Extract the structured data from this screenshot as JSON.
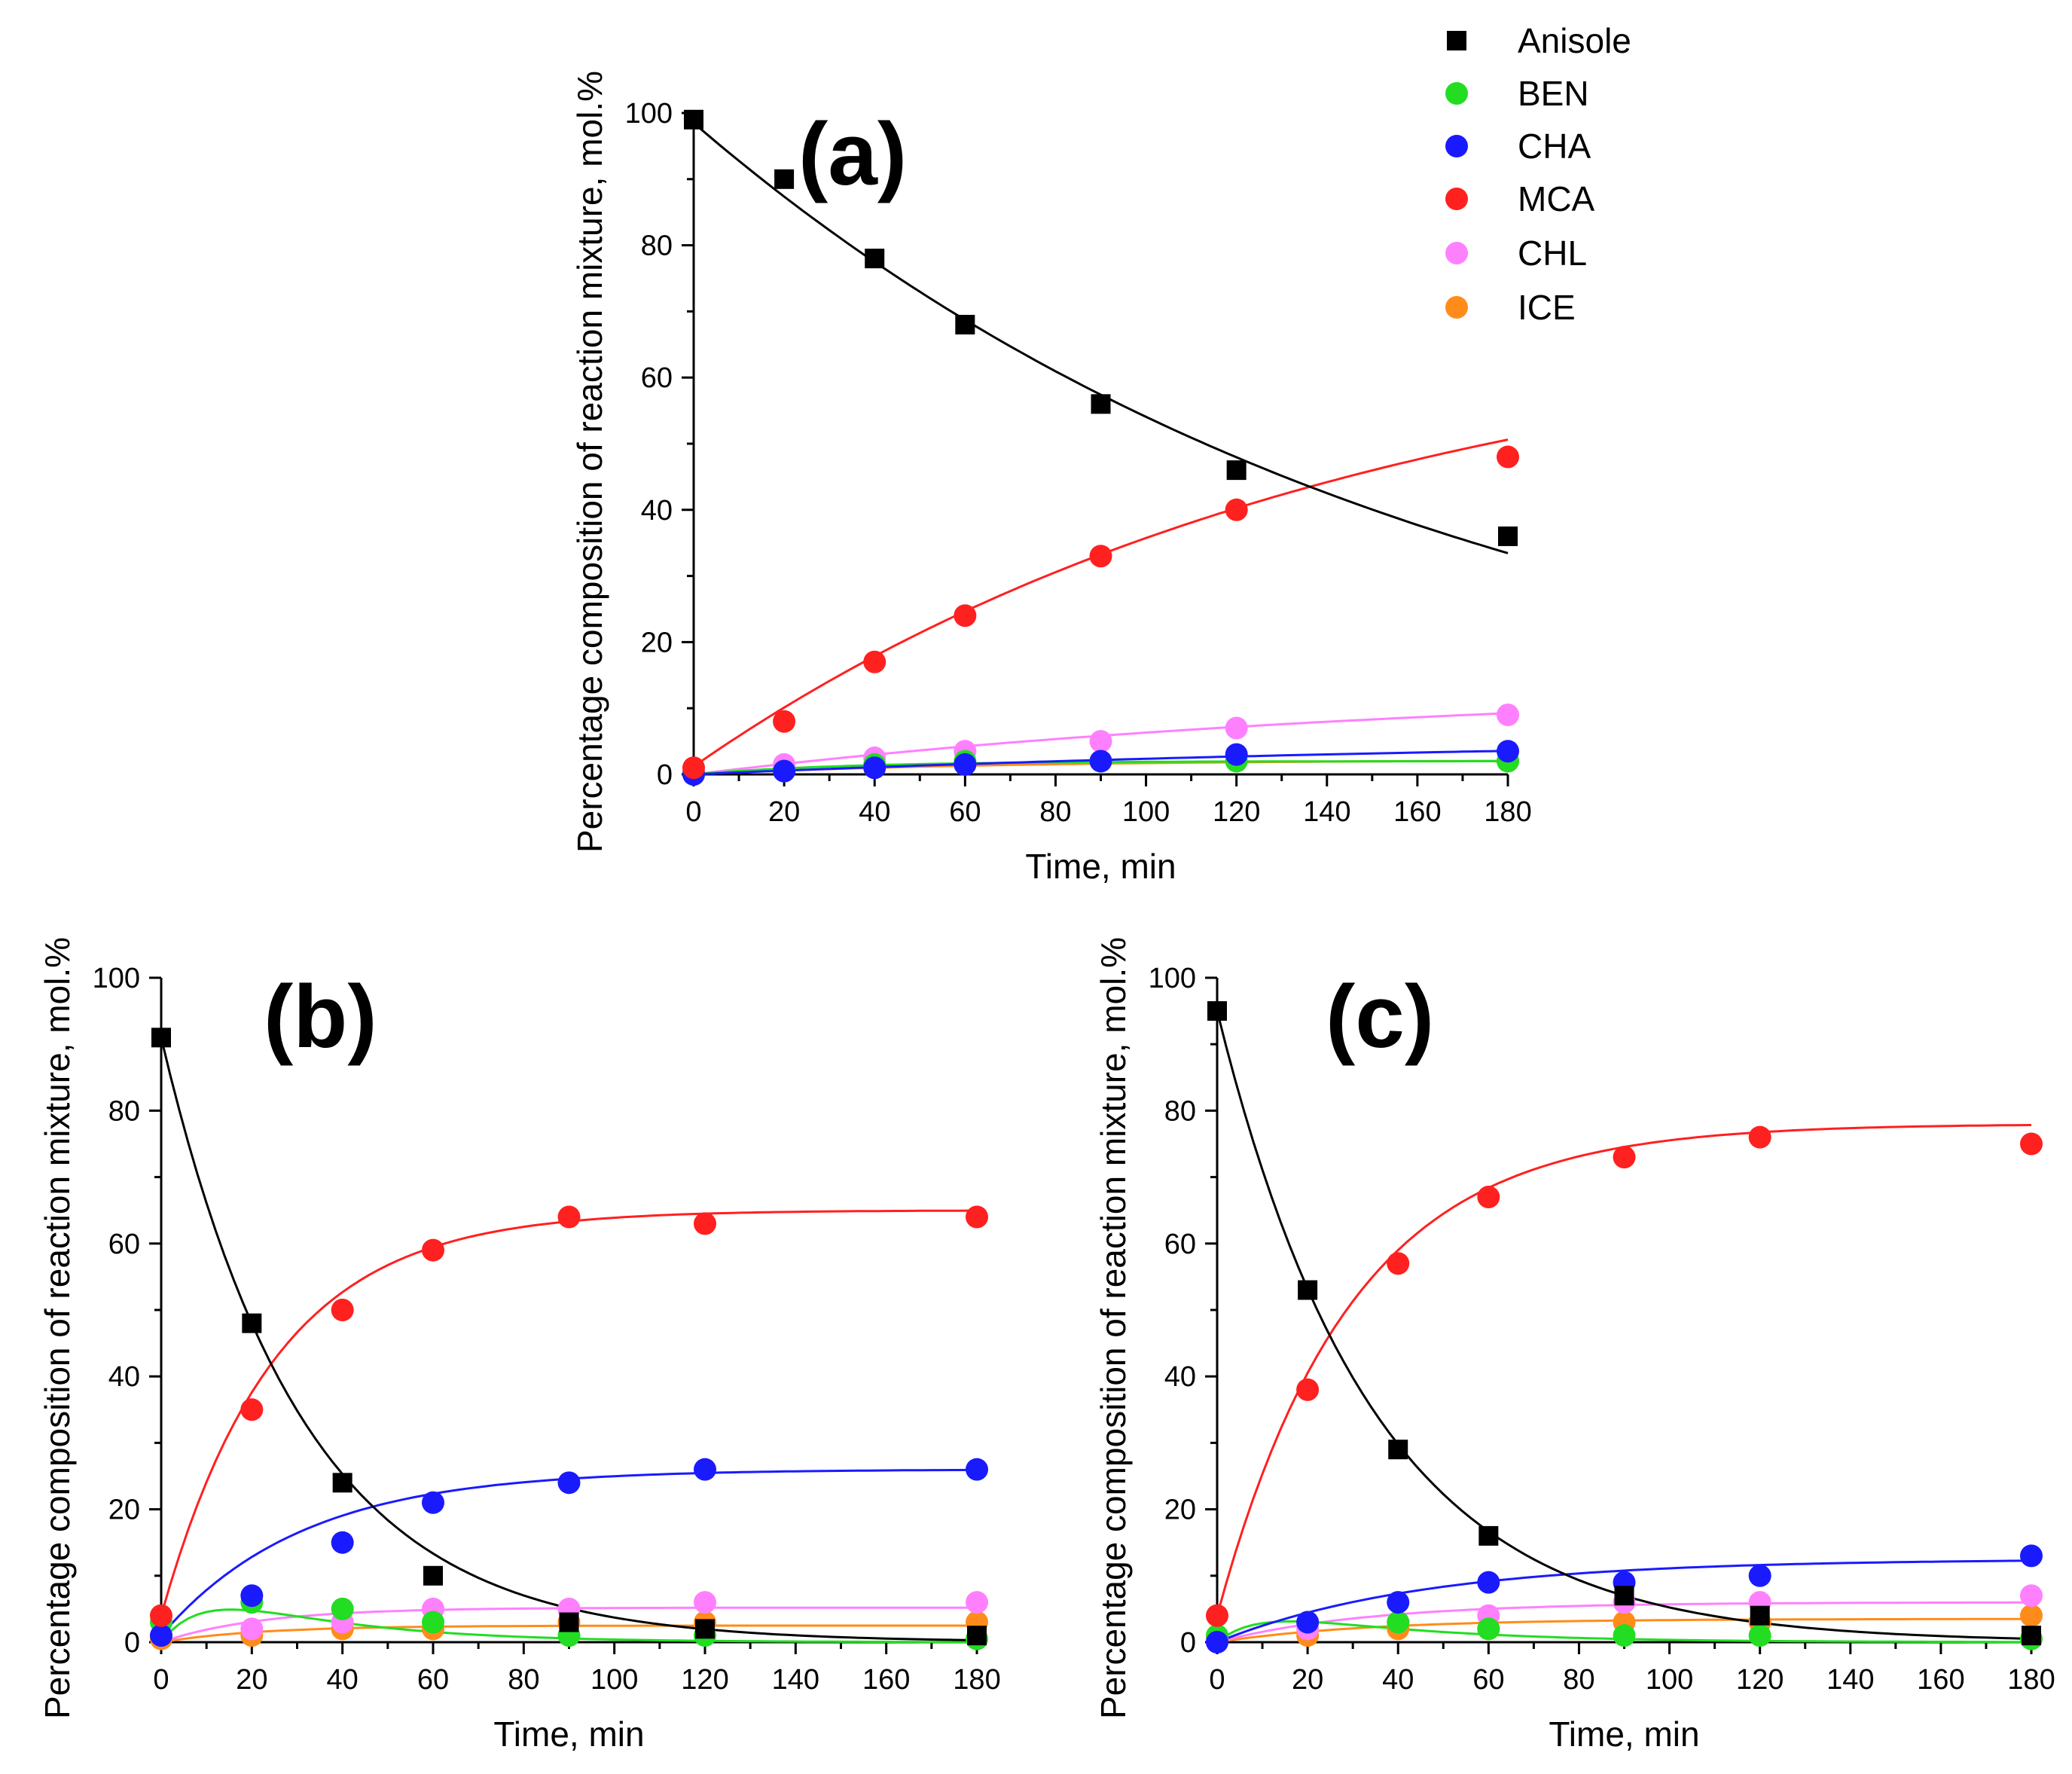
{
  "legend": [
    {
      "name": "Anisole",
      "color": "#000000",
      "marker": "square"
    },
    {
      "name": "BEN",
      "color": "#22dd22",
      "marker": "circle"
    },
    {
      "name": "CHA",
      "color": "#1a1aff",
      "marker": "circle"
    },
    {
      "name": "MCA",
      "color": "#ff2020",
      "marker": "circle"
    },
    {
      "name": "CHL",
      "color": "#ff80ff",
      "marker": "circle"
    },
    {
      "name": "ICE",
      "color": "#ff8c1a",
      "marker": "circle"
    }
  ],
  "chart_data": [
    {
      "type": "scatter",
      "panel": "(a)",
      "xlabel": "Time, min",
      "ylabel": "Percentage composition of reaction mixture, mol.%",
      "xlim": [
        0,
        180
      ],
      "ylim": [
        0,
        100
      ],
      "xticks": [
        0,
        20,
        40,
        60,
        80,
        100,
        120,
        140,
        160,
        180
      ],
      "yticks": [
        0,
        20,
        40,
        60,
        80,
        100
      ],
      "x": [
        0,
        20,
        40,
        60,
        90,
        120,
        180
      ],
      "series": [
        {
          "name": "Anisole",
          "values": [
            99,
            90,
            78,
            68,
            56,
            46,
            36
          ],
          "fit": {
            "model": "decay",
            "a": 98.5,
            "c": 0,
            "k": 0.006
          }
        },
        {
          "name": "BEN",
          "values": [
            0,
            0.5,
            1.5,
            2,
            2,
            2,
            2
          ],
          "fit": {
            "model": "rise",
            "a": 2,
            "c": 0,
            "k": 0.03
          }
        },
        {
          "name": "CHA",
          "values": [
            0,
            0.5,
            1,
            1.5,
            2,
            3,
            3.5
          ],
          "fit": {
            "model": "rise",
            "a": 6,
            "c": 0,
            "k": 0.005
          }
        },
        {
          "name": "MCA",
          "values": [
            1,
            8,
            17,
            24,
            33,
            40,
            48
          ],
          "fit": {
            "model": "rise",
            "a": 70,
            "c": 1.2,
            "k": 0.0068
          }
        },
        {
          "name": "CHL",
          "values": [
            0.5,
            1.5,
            2.5,
            3.5,
            5,
            7,
            9
          ],
          "fit": {
            "model": "rise",
            "a": 14,
            "c": 0,
            "k": 0.006
          }
        },
        {
          "name": "ICE",
          "values": [
            0.5,
            0.5,
            1,
            1.5,
            2,
            2,
            2
          ],
          "fit": {
            "model": "rise",
            "a": 2.2,
            "c": 0,
            "k": 0.015
          }
        }
      ]
    },
    {
      "type": "scatter",
      "panel": "(b)",
      "xlabel": "Time, min",
      "ylabel": "Percentage composition of reaction mixture, mol.%",
      "xlim": [
        0,
        180
      ],
      "ylim": [
        0,
        100
      ],
      "xticks": [
        0,
        20,
        40,
        60,
        80,
        100,
        120,
        140,
        160,
        180
      ],
      "yticks": [
        0,
        20,
        40,
        60,
        80,
        100
      ],
      "x": [
        0,
        20,
        40,
        60,
        90,
        120,
        180
      ],
      "series": [
        {
          "name": "Anisole",
          "values": [
            91,
            48,
            24,
            10,
            3,
            2,
            1
          ],
          "fit": {
            "model": "decay",
            "a": 91,
            "c": 0,
            "k": 0.032
          }
        },
        {
          "name": "BEN",
          "values": [
            3,
            6,
            5,
            3,
            1,
            1,
            0.5
          ],
          "fit": {
            "model": "hump",
            "a": 12,
            "c": 0,
            "k1": 0.11,
            "k2": 0.034
          }
        },
        {
          "name": "CHA",
          "values": [
            1,
            7,
            15,
            21,
            24,
            26,
            26
          ],
          "fit": {
            "model": "rise",
            "a": 25,
            "c": 1,
            "k": 0.032
          }
        },
        {
          "name": "MCA",
          "values": [
            4,
            35,
            50,
            59,
            64,
            63,
            64
          ],
          "fit": {
            "model": "rise",
            "a": 61,
            "c": 4,
            "k": 0.04
          }
        },
        {
          "name": "CHL",
          "values": [
            1,
            2,
            3,
            5,
            5,
            6,
            6
          ],
          "fit": {
            "model": "rise",
            "a": 5.2,
            "c": 0,
            "k": 0.045
          }
        },
        {
          "name": "ICE",
          "values": [
            0.5,
            1,
            2,
            2,
            3,
            3,
            3
          ],
          "fit": {
            "model": "rise",
            "a": 2.5,
            "c": 0,
            "k": 0.045
          }
        }
      ]
    },
    {
      "type": "scatter",
      "panel": "(c)",
      "xlabel": "Time, min",
      "ylabel": "Percentage composition of reaction mixture, mol.%",
      "xlim": [
        0,
        180
      ],
      "ylim": [
        0,
        100
      ],
      "xticks": [
        0,
        20,
        40,
        60,
        80,
        100,
        120,
        140,
        160,
        180
      ],
      "yticks": [
        0,
        20,
        40,
        60,
        80,
        100
      ],
      "x": [
        0,
        20,
        40,
        60,
        90,
        120,
        180
      ],
      "series": [
        {
          "name": "Anisole",
          "values": [
            95,
            53,
            29,
            16,
            7,
            4,
            1
          ],
          "fit": {
            "model": "decay",
            "a": 95,
            "c": 0,
            "k": 0.029
          }
        },
        {
          "name": "BEN",
          "values": [
            1,
            3,
            3,
            2,
            1,
            1,
            0.5
          ],
          "fit": {
            "model": "hump",
            "a": 7,
            "c": 0,
            "k1": 0.11,
            "k2": 0.03
          }
        },
        {
          "name": "CHA",
          "values": [
            0,
            3,
            6,
            9,
            9,
            10,
            13
          ],
          "fit": {
            "model": "rise",
            "a": 12.5,
            "c": 0,
            "k": 0.022
          }
        },
        {
          "name": "MCA",
          "values": [
            4,
            38,
            57,
            67,
            73,
            76,
            75
          ],
          "fit": {
            "model": "rise",
            "a": 74,
            "c": 4,
            "k": 0.034
          }
        },
        {
          "name": "CHL",
          "values": [
            0.5,
            2,
            3,
            4,
            6,
            6,
            7
          ],
          "fit": {
            "model": "rise",
            "a": 6,
            "c": 0,
            "k": 0.03
          }
        },
        {
          "name": "ICE",
          "values": [
            0.5,
            1,
            2,
            2,
            3,
            3,
            4
          ],
          "fit": {
            "model": "rise",
            "a": 3.5,
            "c": 0,
            "k": 0.03
          }
        }
      ]
    }
  ]
}
